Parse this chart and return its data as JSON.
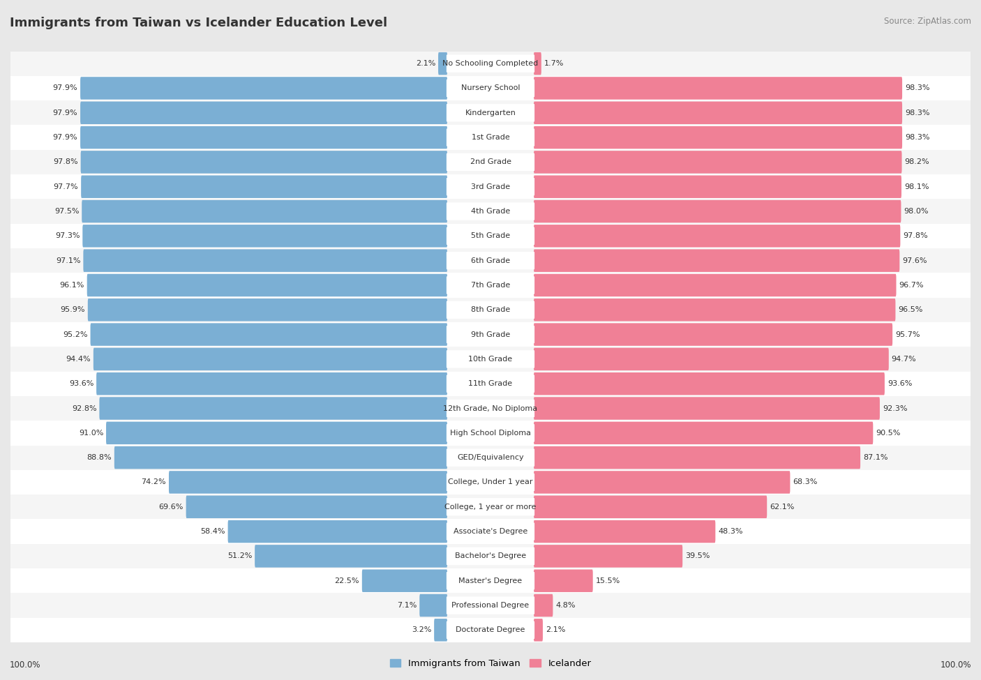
{
  "title": "IMMIGRANTS FROM TAIWAN VS ICELANDER EDUCATION LEVEL",
  "source": "Source: ZipAtlas.com",
  "categories": [
    "No Schooling Completed",
    "Nursery School",
    "Kindergarten",
    "1st Grade",
    "2nd Grade",
    "3rd Grade",
    "4th Grade",
    "5th Grade",
    "6th Grade",
    "7th Grade",
    "8th Grade",
    "9th Grade",
    "10th Grade",
    "11th Grade",
    "12th Grade, No Diploma",
    "High School Diploma",
    "GED/Equivalency",
    "College, Under 1 year",
    "College, 1 year or more",
    "Associate's Degree",
    "Bachelor's Degree",
    "Master's Degree",
    "Professional Degree",
    "Doctorate Degree"
  ],
  "taiwan_values": [
    2.1,
    97.9,
    97.9,
    97.9,
    97.8,
    97.7,
    97.5,
    97.3,
    97.1,
    96.1,
    95.9,
    95.2,
    94.4,
    93.6,
    92.8,
    91.0,
    88.8,
    74.2,
    69.6,
    58.4,
    51.2,
    22.5,
    7.1,
    3.2
  ],
  "iceland_values": [
    1.7,
    98.3,
    98.3,
    98.3,
    98.2,
    98.1,
    98.0,
    97.8,
    97.6,
    96.7,
    96.5,
    95.7,
    94.7,
    93.6,
    92.3,
    90.5,
    87.1,
    68.3,
    62.1,
    48.3,
    39.5,
    15.5,
    4.8,
    2.1
  ],
  "taiwan_color": "#7bafd4",
  "iceland_color": "#f08096",
  "background_color": "#e8e8e8",
  "row_color_even": "#f5f5f5",
  "row_color_odd": "#ffffff",
  "text_color": "#333333",
  "title_fontsize": 13,
  "label_fontsize": 8.0,
  "value_fontsize": 8.0,
  "legend_taiwan": "Immigrants from Taiwan",
  "legend_iceland": "Icelander"
}
